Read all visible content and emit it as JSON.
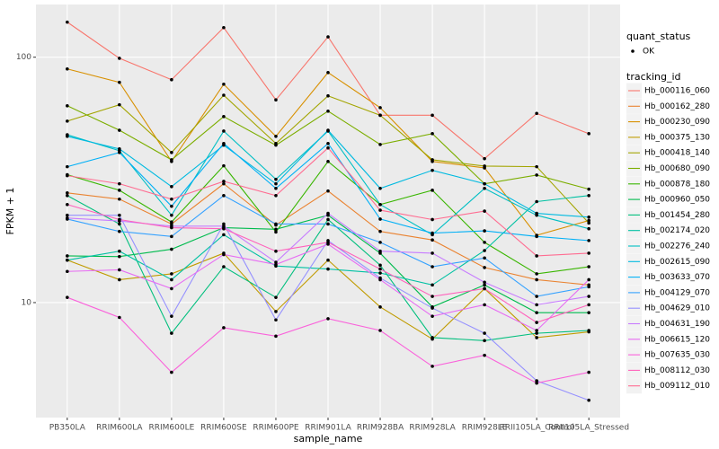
{
  "chart_data": {
    "type": "line",
    "x_label": "sample_name",
    "y_label": "FPKM + 1",
    "yscale": "log",
    "grid": true,
    "legend_position": "right",
    "point_color": "#000000",
    "shape_legend": {
      "title": "quant_status",
      "labels": [
        "OK"
      ]
    },
    "color_legend_title": "tracking_id",
    "categories": [
      "PB350LA",
      "RRIM600LA",
      "RRIM600LE",
      "RRIM600SE",
      "RRIM600PE",
      "RRIM901LA",
      "RRIM928BA",
      "RRIM928LA",
      "RRIM928LE",
      "RRII105LA_Control",
      "RRII105LA_Stressed"
    ],
    "ylim": [
      3.4,
      164
    ],
    "yticks": [
      10,
      100
    ],
    "series": [
      {
        "name": "Hb_000116_060",
        "color": "#F8766D",
        "values": [
          139,
          99,
          81,
          132,
          67,
          121,
          58,
          58,
          38.6,
          59,
          48.8
        ]
      },
      {
        "name": "Hb_000162_280",
        "color": "#EA8331",
        "values": [
          28.0,
          26.4,
          20.9,
          30.5,
          20.7,
          28.5,
          19.5,
          18.0,
          13.9,
          12.4,
          11.8
        ]
      },
      {
        "name": "Hb_000230_090",
        "color": "#D89000",
        "values": [
          89.6,
          79,
          37.6,
          77.6,
          47.6,
          86.6,
          62.3,
          37.6,
          35.4,
          18.8,
          21.6
        ]
      },
      {
        "name": "Hb_000375_130",
        "color": "#C09B00",
        "values": [
          14.9,
          12.4,
          13.1,
          15.9,
          9.2,
          14.9,
          9.6,
          7.1,
          11.4,
          7.2,
          7.6
        ]
      },
      {
        "name": "Hb_000418_140",
        "color": "#A3A500",
        "values": [
          54.9,
          64,
          40.9,
          70,
          44.5,
          69.6,
          58,
          38.2,
          36,
          35.8,
          21.1
        ]
      },
      {
        "name": "Hb_000680_090",
        "color": "#7CAE00",
        "values": [
          63.4,
          50.4,
          38.2,
          57.3,
          43.8,
          60.3,
          44.1,
          48.8,
          30.5,
          33.1,
          29
        ]
      },
      {
        "name": "Hb_000878_180",
        "color": "#39B600",
        "values": [
          33.2,
          28.7,
          21.3,
          36.1,
          19.4,
          37.6,
          25.1,
          28.7,
          17.6,
          13.1,
          14.0
        ]
      },
      {
        "name": "Hb_000960_050",
        "color": "#00BB4E",
        "values": [
          15.5,
          15.4,
          16.5,
          20.2,
          19.9,
          22.7,
          15.9,
          9.6,
          11.8,
          9.1,
          9.1
        ]
      },
      {
        "name": "Hb_001454_280",
        "color": "#00BF7D",
        "values": [
          27.3,
          20.9,
          7.5,
          14.0,
          10.5,
          21.8,
          14.2,
          7.2,
          7.0,
          7.5,
          7.7
        ]
      },
      {
        "name": "Hb_002174_020",
        "color": "#00C1A3",
        "values": [
          14.9,
          16.2,
          12.4,
          18.9,
          14.1,
          13.7,
          13.2,
          11.8,
          16.3,
          25.8,
          27.3
        ]
      },
      {
        "name": "Hb_002276_240",
        "color": "#00BFC4",
        "values": [
          48.3,
          41.6,
          22.7,
          50.0,
          31.8,
          50.0,
          25.1,
          18.9,
          29.2,
          22.7,
          20.0
        ]
      },
      {
        "name": "Hb_002615_090",
        "color": "#00BAE0",
        "values": [
          47.6,
          42.3,
          29.7,
          43.8,
          30.5,
          50.4,
          29.2,
          34.6,
          30.5,
          23.1,
          22.3
        ]
      },
      {
        "name": "Hb_003633_070",
        "color": "#00B0F6",
        "values": [
          35.8,
          40.9,
          24.7,
          44.5,
          29.2,
          44.5,
          21.9,
          19.2,
          19.6,
          18.6,
          17.9
        ]
      },
      {
        "name": "Hb_004129_070",
        "color": "#35A2FF",
        "values": [
          21.9,
          19.5,
          18.6,
          27.3,
          20.9,
          20.9,
          17.6,
          14.0,
          15.2,
          10.6,
          11.6
        ]
      },
      {
        "name": "Hb_004629_010",
        "color": "#9590FF",
        "values": [
          22.7,
          22.7,
          8.8,
          20.9,
          8.5,
          17.9,
          12.6,
          9.5,
          7.5,
          4.8,
          4.0
        ]
      },
      {
        "name": "Hb_004631_190",
        "color": "#C77CFF",
        "values": [
          22.1,
          21.5,
          20.5,
          20.5,
          14.6,
          23.1,
          16.2,
          15.9,
          12.1,
          9.8,
          10.6
        ]
      },
      {
        "name": "Hb_006615_120",
        "color": "#E76BF3",
        "values": [
          13.4,
          13.6,
          11.4,
          15.7,
          14.3,
          17.3,
          12.4,
          8.8,
          9.8,
          7.7,
          12.4
        ]
      },
      {
        "name": "Hb_007635_030",
        "color": "#FA62DB",
        "values": [
          10.5,
          8.7,
          5.2,
          7.9,
          7.3,
          8.6,
          7.7,
          5.5,
          6.1,
          4.7,
          5.2
        ]
      },
      {
        "name": "Hb_008112_030",
        "color": "#FF62BC",
        "values": [
          25.1,
          21.8,
          20.2,
          20.0,
          16.2,
          17.6,
          13.7,
          10.6,
          11.4,
          8.3,
          9.8
        ]
      },
      {
        "name": "Hb_009112_010",
        "color": "#FF6C91",
        "values": [
          32.9,
          30.5,
          26.4,
          31.2,
          27.3,
          42.7,
          23.8,
          21.8,
          23.6,
          15.5,
          15.9
        ]
      }
    ]
  }
}
